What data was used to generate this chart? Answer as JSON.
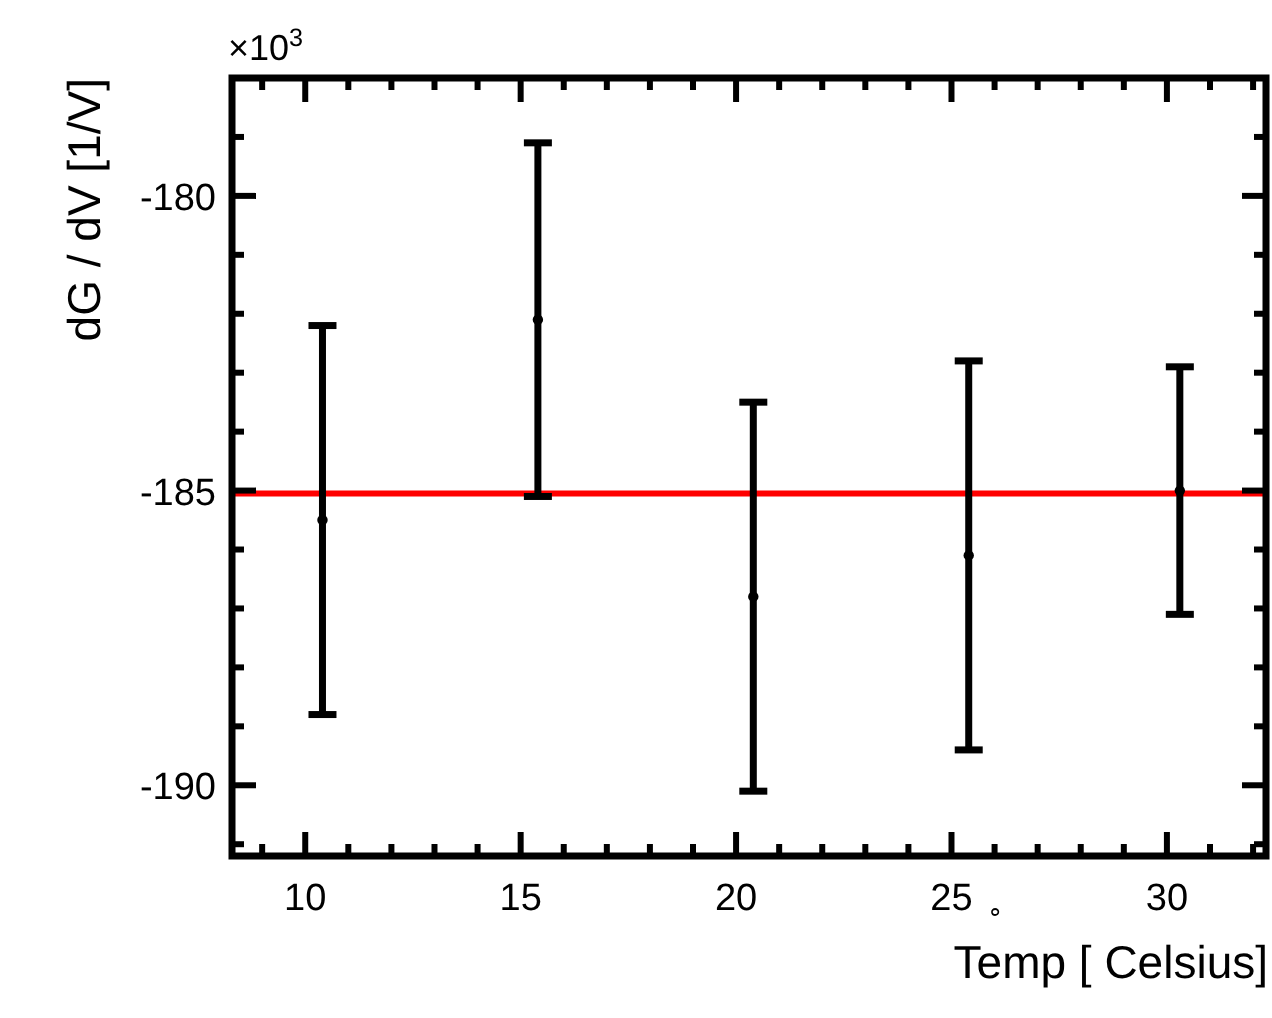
{
  "chart_data": {
    "type": "scatter",
    "xlabel": "Temp [  Celsius]",
    "ylabel": "dG / dV [1/V]",
    "x": [
      10.4,
      15.4,
      20.4,
      25.4,
      30.3
    ],
    "values": [
      -185.5,
      -182.1,
      -186.8,
      -186.1,
      -185.0
    ],
    "errors": [
      3.3,
      3.0,
      3.3,
      3.3,
      2.1
    ],
    "color": "#000000",
    "marker": "circle",
    "xlim": [
      8.3,
      32.3
    ],
    "ylim": [
      -191.2,
      -178.0
    ],
    "xticks": [
      {
        "value": 9,
        "label": null
      },
      10,
      {
        "value": 11,
        "label": null
      },
      {
        "value": 12,
        "label": null
      },
      {
        "value": 13,
        "label": null
      },
      {
        "value": 14,
        "label": null
      },
      15,
      {
        "value": 16,
        "label": null
      },
      {
        "value": 17,
        "label": null
      },
      {
        "value": 18,
        "label": null
      },
      {
        "value": 19,
        "label": null
      },
      20,
      {
        "value": 21,
        "label": null
      },
      {
        "value": 22,
        "label": null
      },
      {
        "value": 23,
        "label": null
      },
      {
        "value": 24,
        "label": null
      },
      25,
      {
        "value": 26,
        "label": null
      },
      {
        "value": 27,
        "label": null
      },
      {
        "value": 28,
        "label": null
      },
      {
        "value": 29,
        "label": null
      },
      30,
      {
        "value": 31,
        "label": null
      },
      {
        "value": 32,
        "label": null
      }
    ],
    "yticks": [
      {
        "value": -191,
        "label": null
      },
      -190,
      {
        "value": -189,
        "label": null
      },
      {
        "value": -188,
        "label": null
      },
      {
        "value": -187,
        "label": null
      },
      {
        "value": -186,
        "label": null
      },
      -185,
      {
        "value": -184,
        "label": null
      },
      {
        "value": -183,
        "label": null
      },
      {
        "value": -182,
        "label": null
      },
      {
        "value": -181,
        "label": null
      },
      -180,
      {
        "value": -179,
        "label": null
      },
      {
        "value": -178,
        "label": null
      }
    ],
    "ref_lines": [
      {
        "axis": "y",
        "value": -185.05,
        "color": "#ff0000"
      }
    ],
    "annotations": [
      "×10$^{3}$",
      "∘"
    ],
    "grid": false
  }
}
